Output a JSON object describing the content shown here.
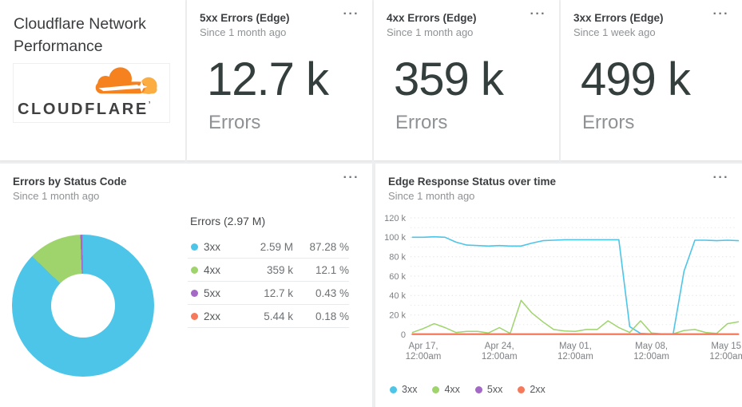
{
  "header_card": {
    "title": "Cloudflare Network Performance",
    "logo_text": "CLOUDFLARE",
    "logo_mark": "’"
  },
  "metric_cards": [
    {
      "title": "5xx Errors (Edge)",
      "subtitle": "Since 1 month ago",
      "value": "12.7 k",
      "unit_label": "Errors",
      "menu_icon": "···"
    },
    {
      "title": "4xx Errors (Edge)",
      "subtitle": "Since 1 month ago",
      "value": "359 k",
      "unit_label": "Errors",
      "menu_icon": "···"
    },
    {
      "title": "3xx Errors (Edge)",
      "subtitle": "Since 1 week ago",
      "value": "499 k",
      "unit_label": "Errors",
      "menu_icon": "···"
    }
  ],
  "status_panel": {
    "title": "Errors by Status Code",
    "subtitle": "Since 1 month ago",
    "menu_icon": "···",
    "table_title": "Errors (2.97 M)"
  },
  "timeseries_panel": {
    "title": "Edge Response Status over time",
    "subtitle": "Since 1 month ago",
    "menu_icon": "···"
  },
  "colors": {
    "status_3xx": "#4cc5e8",
    "status_4xx": "#9ed46b",
    "status_5xx": "#a469c7",
    "status_2xx": "#f5795a",
    "grid": "#dfe1e3",
    "axis_text": "#7d8084"
  },
  "chart_data": [
    {
      "type": "pie",
      "donut": true,
      "title": "Errors by Status Code",
      "total_label": "Errors (2.97 M)",
      "legend_position": "right",
      "slices": [
        {
          "label": "3xx",
          "value": "2.59 M",
          "pct": "87.28 %",
          "percent": 87.28,
          "color": "#4cc5e8"
        },
        {
          "label": "4xx",
          "value": "359 k",
          "pct": "12.1 %",
          "percent": 12.1,
          "color": "#9ed46b"
        },
        {
          "label": "5xx",
          "value": "12.7 k",
          "pct": "0.43 %",
          "percent": 0.43,
          "color": "#a469c7"
        },
        {
          "label": "2xx",
          "value": "5.44 k",
          "pct": "0.18 %",
          "percent": 0.18,
          "color": "#f5795a"
        }
      ]
    },
    {
      "type": "line",
      "title": "Edge Response Status over time",
      "x_start": "Apr 16, 12:00am",
      "x_end": "May 16, 12:00am",
      "x_interval": "1 day",
      "x_tick_days": [
        1,
        8,
        15,
        22,
        29
      ],
      "x_tick_labels": [
        [
          "Apr 17,",
          "12:00am"
        ],
        [
          "Apr 24,",
          "12:00am"
        ],
        [
          "May 01,",
          "12:00am"
        ],
        [
          "May 08,",
          "12:00am"
        ],
        [
          "May 15,",
          "12:00am"
        ]
      ],
      "y_unit": "thousands",
      "ylim": [
        0,
        120
      ],
      "y_ticks": [
        0,
        20,
        40,
        60,
        80,
        100,
        120
      ],
      "y_tick_labels": [
        "0",
        "20 k",
        "40 k",
        "60 k",
        "80 k",
        "100 k",
        "120 k"
      ],
      "grid": "dotted-horizontal-every-10k",
      "legend_position": "bottom",
      "legend": [
        "3xx",
        "4xx",
        "5xx",
        "2xx"
      ],
      "series": [
        {
          "name": "3xx",
          "color": "#4cc5e8",
          "values": [
            100,
            100,
            100.5,
            100,
            95,
            92,
            91.5,
            91,
            91.5,
            91,
            91,
            94,
            96.5,
            97,
            97.5,
            97.5,
            97.5,
            97.5,
            97.5,
            97.5,
            8,
            1,
            0.5,
            0.3,
            0.3,
            65,
            97,
            97,
            96.5,
            97,
            96.5
          ]
        },
        {
          "name": "4xx",
          "color": "#9ed46b",
          "values": [
            2,
            6,
            11,
            7,
            2,
            3,
            3,
            1.5,
            7,
            1,
            35,
            22,
            13,
            5,
            3.5,
            3,
            5,
            5,
            14,
            7,
            2,
            14,
            1.5,
            0.5,
            0.5,
            4,
            5,
            2,
            1,
            11,
            13
          ]
        },
        {
          "name": "5xx",
          "color": "#a469c7",
          "values": [
            0.4,
            0.4,
            0.4,
            0.4,
            0.4,
            0.4,
            0.4,
            0.4,
            0.4,
            0.4,
            0.4,
            0.4,
            0.4,
            0.4,
            0.4,
            0.4,
            0.4,
            0.4,
            0.4,
            0.4,
            0.4,
            0.4,
            0.4,
            0.4,
            0.4,
            0.4,
            0.4,
            0.4,
            0.4,
            0.4,
            0.4
          ]
        },
        {
          "name": "2xx",
          "color": "#f5795a",
          "values": [
            0.2,
            0.2,
            0.2,
            0.2,
            0.2,
            0.2,
            0.2,
            0.2,
            0.2,
            0.2,
            0.2,
            0.2,
            0.2,
            0.2,
            0.2,
            0.2,
            0.2,
            0.2,
            0.2,
            0.2,
            0.2,
            0.2,
            0.2,
            0.2,
            0.2,
            0.2,
            0.2,
            0.2,
            0.2,
            0.2,
            0.2
          ]
        }
      ]
    }
  ]
}
